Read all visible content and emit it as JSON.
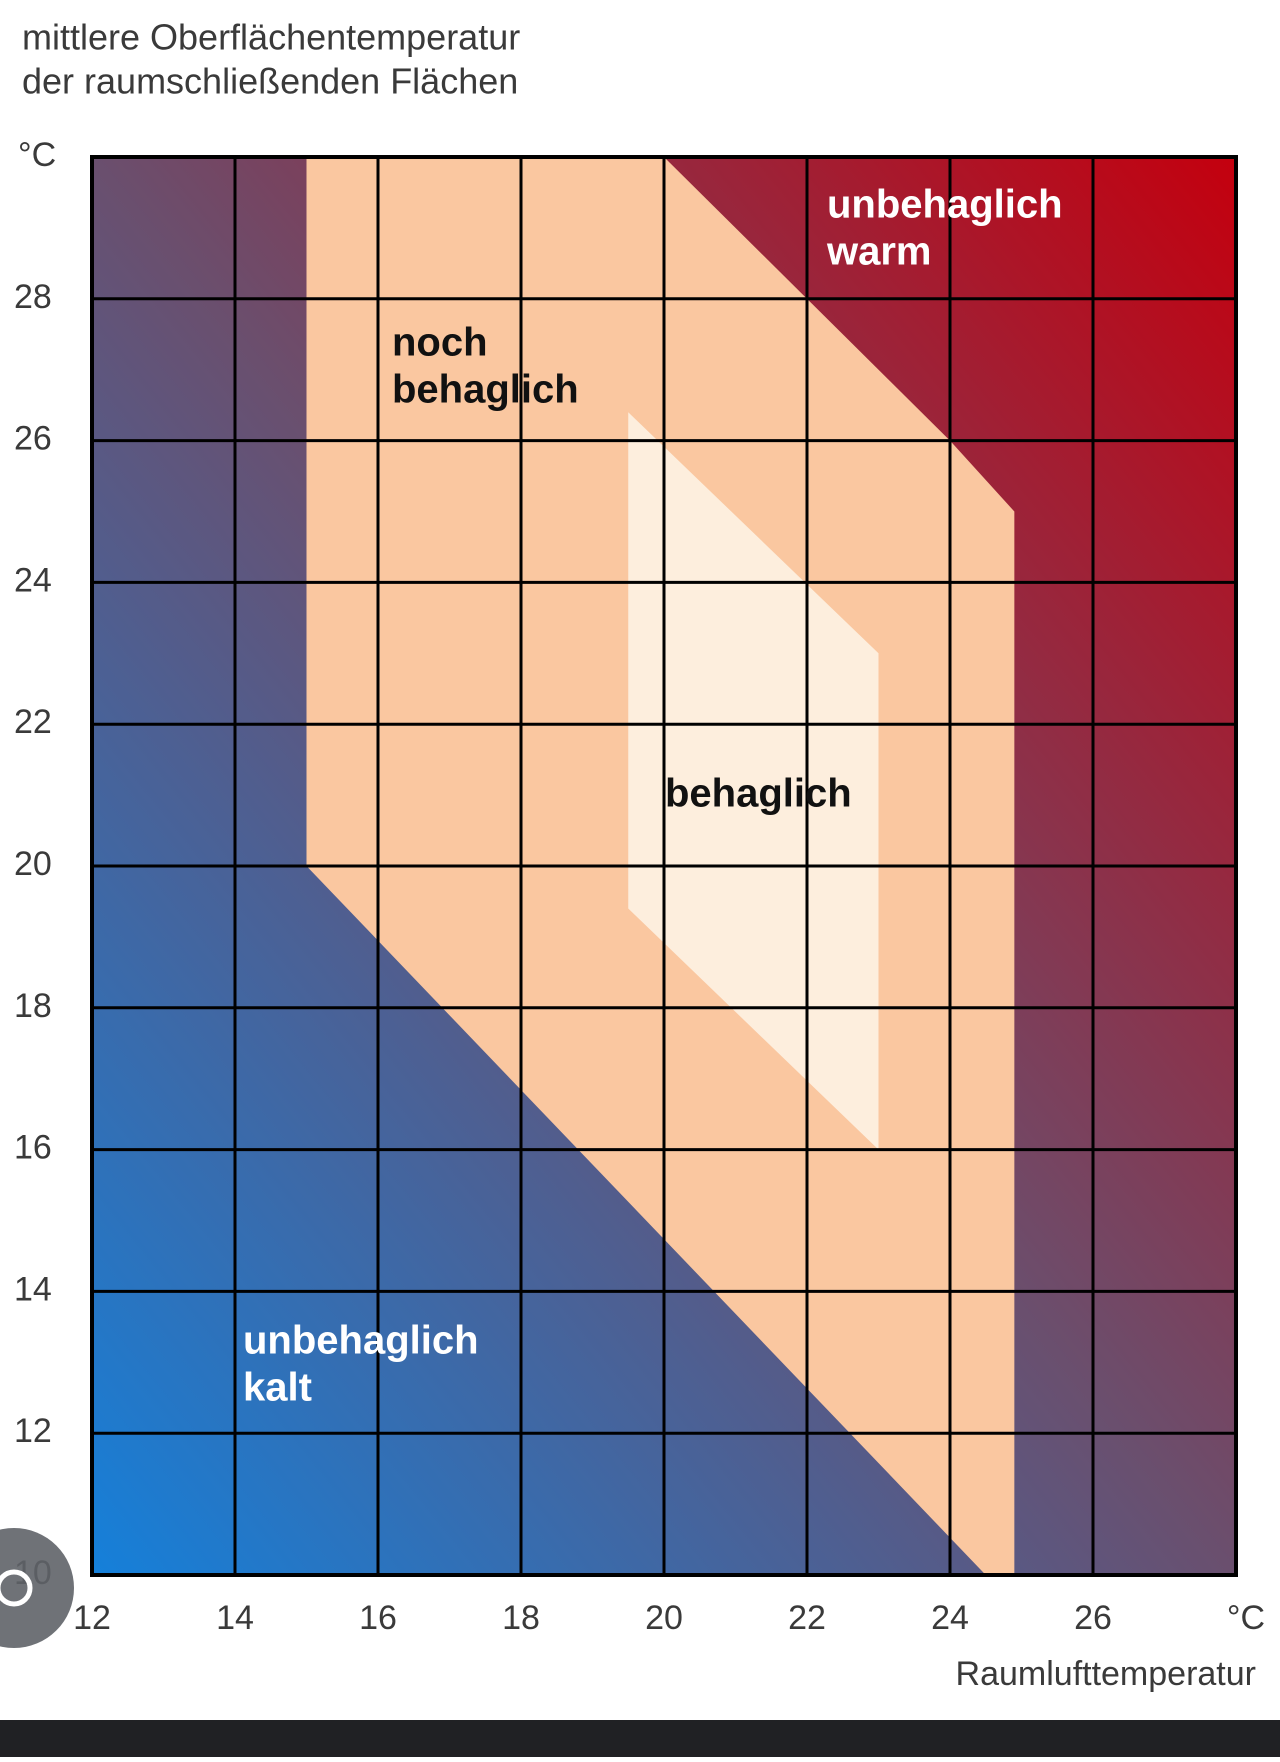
{
  "chart_data": {
    "type": "region",
    "title": [
      "mittlere Oberflächentemperatur",
      "der raumschließenden Flächen"
    ],
    "y_unit": "°C",
    "x_unit": "°C",
    "x_label": "Raumlufttemperatur",
    "xlim": [
      12,
      28
    ],
    "ylim": [
      10,
      30
    ],
    "xticks": [
      12,
      14,
      16,
      18,
      20,
      22,
      24,
      26
    ],
    "yticks": [
      10,
      12,
      14,
      16,
      18,
      20,
      22,
      24,
      26,
      28
    ],
    "grid": true,
    "background_colors": [
      "#1580da",
      "#6a4f6e",
      "#c4000e"
    ],
    "regions": [
      {
        "color": "#fac7a0",
        "x": [
          15,
          20,
          24,
          24.9,
          24.9,
          24.5,
          15
        ],
        "y": [
          30,
          30,
          26,
          25,
          10,
          10,
          20
        ]
      },
      {
        "color": "#fdeedd",
        "x": [
          19.5,
          23,
          23,
          19.5
        ],
        "y": [
          26.4,
          23,
          16,
          19.4
        ]
      }
    ],
    "annotations": [
      {
        "lines": [
          "unbehaglich",
          "warm"
        ]
      },
      {
        "lines": [
          "noch",
          "behaglich"
        ]
      },
      {
        "lines": [
          "behaglich"
        ]
      },
      {
        "lines": [
          "unbehaglich",
          "kalt"
        ]
      }
    ]
  }
}
